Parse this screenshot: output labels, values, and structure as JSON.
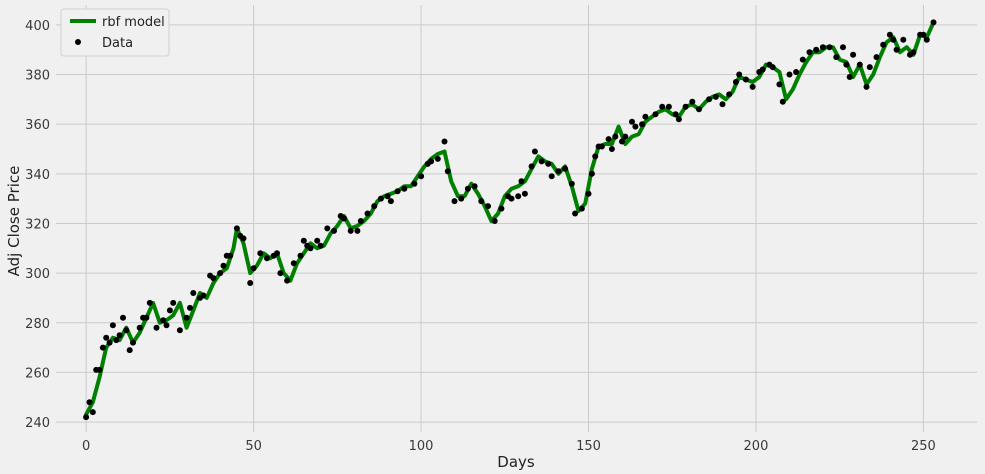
{
  "chart_data": {
    "type": "line",
    "xlabel": "Days",
    "ylabel": "Adj Close Price",
    "xlim": [
      -9,
      266
    ],
    "ylim": [
      236,
      408
    ],
    "xticks": [
      0,
      50,
      100,
      150,
      200,
      250
    ],
    "yticks": [
      240,
      260,
      280,
      300,
      320,
      340,
      360,
      380,
      400
    ],
    "grid": true,
    "legend_position": "top-left",
    "colors": {
      "model": "#008000",
      "data": "#000000",
      "background": "#f0f0f0",
      "grid": "#cbcbcb"
    },
    "series": [
      {
        "name": "rbf model",
        "kind": "line",
        "points": [
          [
            0,
            243
          ],
          [
            2,
            248
          ],
          [
            4,
            258
          ],
          [
            6,
            270
          ],
          [
            8,
            274
          ],
          [
            10,
            273
          ],
          [
            12,
            278
          ],
          [
            14,
            272
          ],
          [
            16,
            276
          ],
          [
            18,
            282
          ],
          [
            20,
            288
          ],
          [
            22,
            280
          ],
          [
            24,
            281
          ],
          [
            26,
            283
          ],
          [
            28,
            288
          ],
          [
            30,
            278
          ],
          [
            32,
            285
          ],
          [
            34,
            292
          ],
          [
            36,
            290
          ],
          [
            38,
            296
          ],
          [
            40,
            300
          ],
          [
            42,
            302
          ],
          [
            44,
            310
          ],
          [
            45,
            318
          ],
          [
            47,
            312
          ],
          [
            49,
            300
          ],
          [
            51,
            303
          ],
          [
            53,
            308
          ],
          [
            55,
            306
          ],
          [
            57,
            308
          ],
          [
            59,
            300
          ],
          [
            61,
            297
          ],
          [
            63,
            304
          ],
          [
            65,
            308
          ],
          [
            67,
            312
          ],
          [
            69,
            310
          ],
          [
            71,
            311
          ],
          [
            73,
            316
          ],
          [
            75,
            319
          ],
          [
            77,
            323
          ],
          [
            79,
            318
          ],
          [
            81,
            319
          ],
          [
            83,
            321
          ],
          [
            85,
            324
          ],
          [
            87,
            329
          ],
          [
            89,
            331
          ],
          [
            91,
            332
          ],
          [
            93,
            333
          ],
          [
            95,
            335
          ],
          [
            97,
            335
          ],
          [
            99,
            339
          ],
          [
            101,
            343
          ],
          [
            103,
            346
          ],
          [
            105,
            348
          ],
          [
            107,
            349
          ],
          [
            109,
            337
          ],
          [
            111,
            331
          ],
          [
            113,
            331
          ],
          [
            115,
            336
          ],
          [
            117,
            332
          ],
          [
            119,
            327
          ],
          [
            121,
            321
          ],
          [
            123,
            324
          ],
          [
            125,
            331
          ],
          [
            127,
            334
          ],
          [
            129,
            335
          ],
          [
            131,
            337
          ],
          [
            133,
            342
          ],
          [
            135,
            347
          ],
          [
            137,
            345
          ],
          [
            139,
            344
          ],
          [
            141,
            340
          ],
          [
            143,
            343
          ],
          [
            145,
            335
          ],
          [
            147,
            325
          ],
          [
            149,
            328
          ],
          [
            151,
            342
          ],
          [
            153,
            351
          ],
          [
            155,
            352
          ],
          [
            157,
            352
          ],
          [
            159,
            359
          ],
          [
            161,
            352
          ],
          [
            163,
            355
          ],
          [
            165,
            356
          ],
          [
            167,
            361
          ],
          [
            169,
            363
          ],
          [
            171,
            365
          ],
          [
            173,
            366
          ],
          [
            175,
            364
          ],
          [
            177,
            363
          ],
          [
            179,
            367
          ],
          [
            181,
            368
          ],
          [
            183,
            366
          ],
          [
            185,
            369
          ],
          [
            187,
            371
          ],
          [
            189,
            372
          ],
          [
            191,
            370
          ],
          [
            193,
            373
          ],
          [
            195,
            379
          ],
          [
            197,
            378
          ],
          [
            199,
            377
          ],
          [
            201,
            379
          ],
          [
            203,
            384
          ],
          [
            205,
            383
          ],
          [
            207,
            381
          ],
          [
            209,
            370
          ],
          [
            211,
            374
          ],
          [
            213,
            380
          ],
          [
            215,
            385
          ],
          [
            217,
            389
          ],
          [
            219,
            389
          ],
          [
            221,
            391
          ],
          [
            223,
            391
          ],
          [
            225,
            386
          ],
          [
            227,
            385
          ],
          [
            229,
            379
          ],
          [
            231,
            384
          ],
          [
            233,
            376
          ],
          [
            235,
            380
          ],
          [
            237,
            387
          ],
          [
            239,
            393
          ],
          [
            241,
            395
          ],
          [
            243,
            389
          ],
          [
            245,
            391
          ],
          [
            247,
            388
          ],
          [
            249,
            396
          ],
          [
            251,
            395
          ],
          [
            253,
            401
          ]
        ]
      },
      {
        "name": "Data",
        "kind": "scatter",
        "points": [
          [
            0,
            242
          ],
          [
            1,
            248
          ],
          [
            2,
            244
          ],
          [
            3,
            261
          ],
          [
            4,
            261
          ],
          [
            5,
            270
          ],
          [
            6,
            274
          ],
          [
            7,
            272
          ],
          [
            8,
            279
          ],
          [
            9,
            273
          ],
          [
            10,
            275
          ],
          [
            11,
            282
          ],
          [
            12,
            277
          ],
          [
            13,
            269
          ],
          [
            14,
            272
          ],
          [
            16,
            278
          ],
          [
            17,
            282
          ],
          [
            18,
            282
          ],
          [
            19,
            288
          ],
          [
            21,
            278
          ],
          [
            23,
            281
          ],
          [
            24,
            279
          ],
          [
            25,
            285
          ],
          [
            26,
            288
          ],
          [
            28,
            277
          ],
          [
            30,
            282
          ],
          [
            31,
            286
          ],
          [
            32,
            292
          ],
          [
            34,
            290
          ],
          [
            35,
            291
          ],
          [
            37,
            299
          ],
          [
            38,
            298
          ],
          [
            40,
            300
          ],
          [
            41,
            303
          ],
          [
            42,
            307
          ],
          [
            43,
            307
          ],
          [
            45,
            318
          ],
          [
            46,
            315
          ],
          [
            47,
            314
          ],
          [
            49,
            296
          ],
          [
            50,
            302
          ],
          [
            52,
            308
          ],
          [
            54,
            306
          ],
          [
            56,
            307
          ],
          [
            57,
            308
          ],
          [
            58,
            300
          ],
          [
            60,
            297
          ],
          [
            62,
            304
          ],
          [
            64,
            307
          ],
          [
            65,
            313
          ],
          [
            66,
            311
          ],
          [
            67,
            310
          ],
          [
            69,
            313
          ],
          [
            70,
            311
          ],
          [
            72,
            318
          ],
          [
            74,
            317
          ],
          [
            76,
            323
          ],
          [
            77,
            322
          ],
          [
            79,
            317
          ],
          [
            81,
            317
          ],
          [
            82,
            321
          ],
          [
            84,
            324
          ],
          [
            86,
            327
          ],
          [
            88,
            330
          ],
          [
            90,
            331
          ],
          [
            91,
            329
          ],
          [
            93,
            333
          ],
          [
            95,
            334
          ],
          [
            98,
            336
          ],
          [
            100,
            339
          ],
          [
            102,
            344
          ],
          [
            103,
            345
          ],
          [
            105,
            346
          ],
          [
            107,
            353
          ],
          [
            108,
            341
          ],
          [
            110,
            329
          ],
          [
            112,
            330
          ],
          [
            114,
            334
          ],
          [
            116,
            335
          ],
          [
            118,
            329
          ],
          [
            120,
            327
          ],
          [
            122,
            321
          ],
          [
            124,
            326
          ],
          [
            126,
            331
          ],
          [
            127,
            330
          ],
          [
            129,
            331
          ],
          [
            130,
            337
          ],
          [
            131,
            332
          ],
          [
            133,
            343
          ],
          [
            134,
            349
          ],
          [
            136,
            345
          ],
          [
            138,
            344
          ],
          [
            139,
            339
          ],
          [
            141,
            341
          ],
          [
            143,
            342
          ],
          [
            145,
            336
          ],
          [
            146,
            324
          ],
          [
            148,
            326
          ],
          [
            150,
            332
          ],
          [
            151,
            340
          ],
          [
            152,
            347
          ],
          [
            153,
            351
          ],
          [
            154,
            351
          ],
          [
            156,
            354
          ],
          [
            157,
            350
          ],
          [
            158,
            355
          ],
          [
            160,
            353
          ],
          [
            161,
            355
          ],
          [
            163,
            361
          ],
          [
            164,
            359
          ],
          [
            166,
            360
          ],
          [
            167,
            363
          ],
          [
            170,
            364
          ],
          [
            172,
            367
          ],
          [
            174,
            367
          ],
          [
            176,
            364
          ],
          [
            177,
            362
          ],
          [
            179,
            367
          ],
          [
            181,
            369
          ],
          [
            183,
            366
          ],
          [
            186,
            370
          ],
          [
            188,
            371
          ],
          [
            190,
            368
          ],
          [
            192,
            372
          ],
          [
            194,
            377
          ],
          [
            195,
            380
          ],
          [
            197,
            378
          ],
          [
            199,
            375
          ],
          [
            201,
            381
          ],
          [
            202,
            382
          ],
          [
            204,
            384
          ],
          [
            205,
            383
          ],
          [
            207,
            376
          ],
          [
            208,
            369
          ],
          [
            210,
            380
          ],
          [
            212,
            381
          ],
          [
            214,
            386
          ],
          [
            216,
            389
          ],
          [
            218,
            390
          ],
          [
            220,
            391
          ],
          [
            222,
            391
          ],
          [
            224,
            387
          ],
          [
            226,
            391
          ],
          [
            227,
            384
          ],
          [
            228,
            379
          ],
          [
            229,
            388
          ],
          [
            231,
            384
          ],
          [
            233,
            375
          ],
          [
            234,
            383
          ],
          [
            236,
            387
          ],
          [
            238,
            392
          ],
          [
            240,
            396
          ],
          [
            241,
            394
          ],
          [
            242,
            390
          ],
          [
            244,
            394
          ],
          [
            246,
            388
          ],
          [
            247,
            389
          ],
          [
            249,
            396
          ],
          [
            250,
            396
          ],
          [
            251,
            394
          ],
          [
            253,
            401
          ]
        ]
      }
    ]
  }
}
